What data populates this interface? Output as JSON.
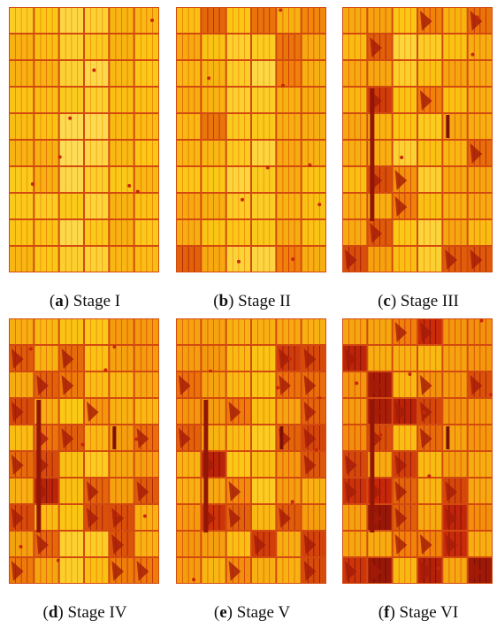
{
  "panels": [
    {
      "caption": [
        "(",
        "a",
        ") Stage I"
      ]
    },
    {
      "caption": [
        "(",
        "b",
        ") Stage II"
      ]
    },
    {
      "caption": [
        "(",
        "c",
        ") Stage III"
      ]
    },
    {
      "caption": [
        "(",
        "d",
        ") Stage IV"
      ]
    },
    {
      "caption": [
        "(",
        "e",
        ") Stage V"
      ]
    },
    {
      "caption": [
        "(",
        "f",
        ") Stage VI"
      ]
    }
  ]
}
